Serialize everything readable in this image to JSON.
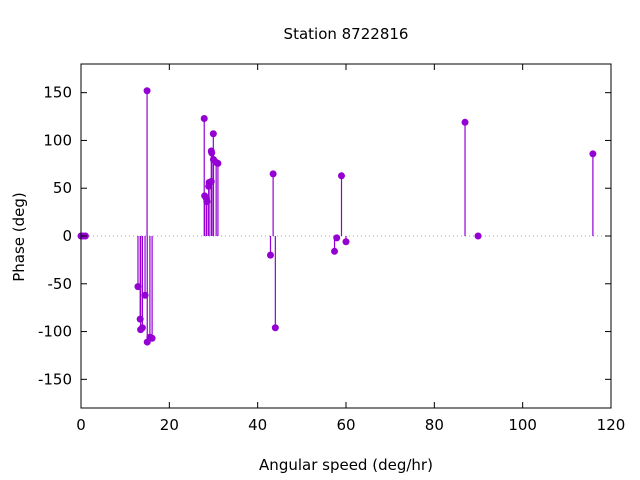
{
  "chart_data": {
    "type": "scatter",
    "style": "impulses-with-points",
    "title": "Station 8722816",
    "xlabel": "Angular speed (deg/hr)",
    "ylabel": "Phase (deg)",
    "xlim": [
      0,
      120
    ],
    "ylim": [
      -180,
      180
    ],
    "xticks": [
      0,
      20,
      40,
      60,
      80,
      100,
      120
    ],
    "yticks": [
      -150,
      -100,
      -50,
      0,
      50,
      100,
      150
    ],
    "zero_line": "dotted",
    "grid": false,
    "color": "#9400d3",
    "series": [
      {
        "points": [
          [
            0.0,
            0
          ],
          [
            0.5,
            0
          ],
          [
            1.0,
            0
          ],
          [
            12.9,
            -53
          ],
          [
            13.4,
            -87
          ],
          [
            13.5,
            -98
          ],
          [
            13.9,
            -96
          ],
          [
            14.5,
            -62
          ],
          [
            14.96,
            152
          ],
          [
            15.0,
            -111
          ],
          [
            15.6,
            -106
          ],
          [
            16.1,
            -107
          ],
          [
            27.9,
            123
          ],
          [
            28.0,
            42
          ],
          [
            28.4,
            39
          ],
          [
            28.5,
            36
          ],
          [
            28.9,
            52
          ],
          [
            29.0,
            56
          ],
          [
            29.5,
            57
          ],
          [
            29.5,
            89
          ],
          [
            29.6,
            87
          ],
          [
            29.96,
            107
          ],
          [
            30.0,
            80
          ],
          [
            30.6,
            77
          ],
          [
            31.0,
            76
          ],
          [
            42.9,
            -20
          ],
          [
            43.5,
            65
          ],
          [
            44.0,
            -96
          ],
          [
            57.4,
            -16
          ],
          [
            57.9,
            -2
          ],
          [
            58.98,
            63
          ],
          [
            60.0,
            -6
          ],
          [
            86.95,
            119
          ],
          [
            89.9,
            0
          ],
          [
            115.9,
            86
          ]
        ]
      }
    ]
  }
}
